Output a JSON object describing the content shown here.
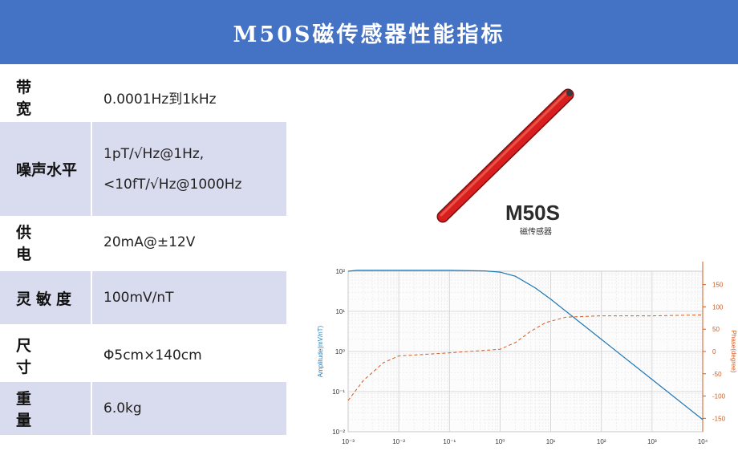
{
  "header": {
    "title": "M50S磁传感器性能指标"
  },
  "specs": [
    {
      "label": "带宽",
      "value": "0.0001Hz到1kHz"
    },
    {
      "label": "噪声水平",
      "value_line1": "1pT/√Hz@1Hz,",
      "value_line2": "<10fT/√Hz@1000Hz"
    },
    {
      "label": "供电",
      "value": "20mA@±12V"
    },
    {
      "label": "灵敏度",
      "value": "100mV/nT"
    },
    {
      "label": "尺寸",
      "value": "Φ5cm×140cm"
    },
    {
      "label": "重量",
      "value": "6.0kg"
    }
  ],
  "product": {
    "name": "M50S",
    "subtitle": "磁传感器"
  },
  "colors": {
    "header_bg": "#4472c4",
    "row_shade": "#d9dcee",
    "amplitude": "#1f77b4",
    "phase": "#d45a1f"
  },
  "chart_data": {
    "type": "line",
    "x_scale": "log",
    "y_left_scale": "log",
    "x_ticks": [
      "10⁻³",
      "10⁻²",
      "10⁻¹",
      "10⁰",
      "10¹",
      "10²",
      "10³",
      "10⁴"
    ],
    "x_tick_values": [
      0.001,
      0.01,
      0.1,
      1,
      10,
      100,
      1000,
      10000
    ],
    "y_left_ticks": [
      "10²",
      "10¹",
      "10⁰",
      "10⁻¹",
      "10⁻²"
    ],
    "y_left_tick_values": [
      100,
      10,
      1,
      0.1,
      0.01
    ],
    "y_right_ticks": [
      "150",
      "100",
      "50",
      "0",
      "-50",
      "-100",
      "-150"
    ],
    "y_right_tick_values": [
      150,
      100,
      50,
      0,
      -50,
      -100,
      -150
    ],
    "ylabel_left": "Amplitude(mV/nT)",
    "ylabel_right": "Phase(degree)",
    "xlim": [
      0.001,
      10000
    ],
    "ylim_left": [
      0.01,
      100
    ],
    "ylim_right": [
      -180,
      180
    ],
    "series": [
      {
        "axis": "left",
        "style": "solid",
        "points": [
          [
            0.001,
            100
          ],
          [
            0.0015,
            105
          ],
          [
            0.01,
            105
          ],
          [
            0.1,
            105
          ],
          [
            0.5,
            102
          ],
          [
            1,
            95
          ],
          [
            2,
            75
          ],
          [
            5,
            38
          ],
          [
            10,
            20
          ],
          [
            100,
            2
          ],
          [
            1000,
            0.2
          ],
          [
            10000,
            0.02
          ]
        ]
      },
      {
        "axis": "right",
        "style": "dashed",
        "points": [
          [
            0.001,
            -110
          ],
          [
            0.002,
            -65
          ],
          [
            0.005,
            -25
          ],
          [
            0.01,
            -10
          ],
          [
            0.1,
            -3
          ],
          [
            1,
            5
          ],
          [
            2,
            20
          ],
          [
            4,
            45
          ],
          [
            8,
            65
          ],
          [
            20,
            77
          ],
          [
            100,
            80
          ],
          [
            1000,
            80
          ],
          [
            10000,
            82
          ]
        ]
      }
    ]
  }
}
